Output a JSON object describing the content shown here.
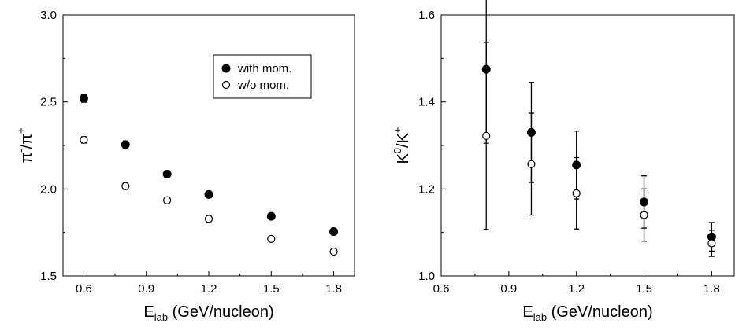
{
  "chart_data": [
    {
      "type": "scatter",
      "xlabel": {
        "main": "E",
        "sub": "lab",
        "rest": " (GeV/nucleon)"
      },
      "ylabel": {
        "base1": "π",
        "sup1": "-",
        "mid": "/π",
        "sup2": "+"
      },
      "xlim": [
        0.5,
        1.9
      ],
      "ylim": [
        1.5,
        3.0
      ],
      "xticks": [
        "0.6",
        "0.9",
        "1.2",
        "1.5",
        "1.8"
      ],
      "yticks": [
        "1.5",
        "2.0",
        "2.5",
        "3.0"
      ],
      "legend": {
        "position": "top-right",
        "entries": [
          "with mom.",
          "w/o mom."
        ]
      },
      "series": [
        {
          "name": "with mom.",
          "marker": "filled-circle",
          "x": [
            0.6,
            0.8,
            1.0,
            1.2,
            1.5,
            1.8
          ],
          "y": [
            2.52,
            2.255,
            2.085,
            1.968,
            1.843,
            1.755
          ],
          "err": [
            0.022,
            0.02,
            0.02,
            0.018,
            0.016,
            0.012
          ]
        },
        {
          "name": "w/o mom.",
          "marker": "open-circle",
          "x": [
            0.6,
            0.8,
            1.0,
            1.2,
            1.5,
            1.8
          ],
          "y": [
            2.282,
            2.016,
            1.935,
            1.828,
            1.713,
            1.64
          ],
          "err": [
            0.018,
            0.018,
            0.018,
            0.016,
            0.015,
            0.012
          ]
        }
      ]
    },
    {
      "type": "scatter",
      "xlabel": {
        "main": "E",
        "sub": "lab",
        "rest": " (GeV/nucleon)"
      },
      "ylabel": {
        "base1": "K",
        "sup1": "0",
        "mid": "/K",
        "sup2": "+"
      },
      "xlim": [
        0.6,
        1.9
      ],
      "ylim": [
        1.0,
        1.6
      ],
      "xticks": [
        "0.6",
        "0.9",
        "1.2",
        "1.5",
        "1.8"
      ],
      "yticks": [
        "1.0",
        "1.2",
        "1.4",
        "1.6"
      ],
      "series": [
        {
          "name": "with mom.",
          "marker": "filled-circle",
          "x": [
            0.8,
            1.0,
            1.2,
            1.5,
            1.8
          ],
          "y": [
            1.475,
            1.33,
            1.255,
            1.17,
            1.09
          ],
          "err": [
            0.17,
            0.115,
            0.078,
            0.06,
            0.033
          ]
        },
        {
          "name": "w/o mom.",
          "marker": "open-circle",
          "x": [
            0.8,
            1.0,
            1.2,
            1.5,
            1.8
          ],
          "y": [
            1.322,
            1.257,
            1.19,
            1.14,
            1.075
          ],
          "err": [
            0.215,
            0.117,
            0.082,
            0.06,
            0.03
          ]
        }
      ]
    }
  ]
}
